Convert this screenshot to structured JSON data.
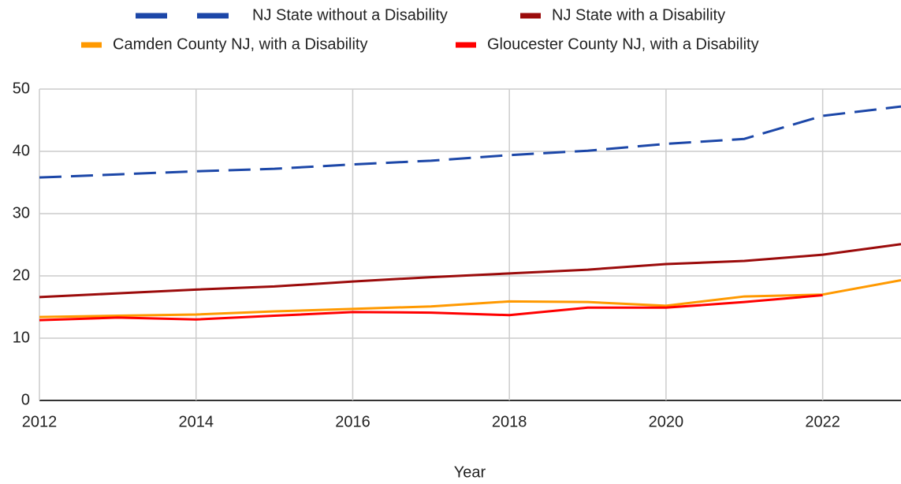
{
  "chart_data": {
    "type": "line",
    "x": [
      2012,
      2013,
      2014,
      2015,
      2016,
      2017,
      2018,
      2019,
      2020,
      2021,
      2022,
      2023
    ],
    "series": [
      {
        "name": "NJ State without a Disability",
        "color": "#1c47a8",
        "dashed": true,
        "values": [
          35.8,
          36.3,
          36.8,
          37.2,
          37.9,
          38.5,
          39.4,
          40.1,
          41.2,
          42.0,
          45.7,
          47.2
        ]
      },
      {
        "name": "NJ State with a Disability",
        "color": "#9b0b0b",
        "dashed": false,
        "values": [
          16.6,
          17.2,
          17.8,
          18.3,
          19.1,
          19.8,
          20.4,
          21.0,
          21.9,
          22.4,
          23.4,
          25.1
        ]
      },
      {
        "name": "Camden County NJ, with a Disability",
        "color": "#ff9900",
        "dashed": false,
        "values": [
          13.4,
          13.6,
          13.8,
          14.3,
          14.7,
          15.1,
          15.9,
          15.8,
          15.2,
          16.7,
          17.0,
          19.3
        ]
      },
      {
        "name": "Gloucester County NJ, with a Disability",
        "color": "#ff0000",
        "dashed": false,
        "values": [
          12.9,
          13.3,
          13.0,
          13.6,
          14.2,
          14.1,
          13.7,
          14.9,
          14.9,
          15.8,
          16.9,
          null
        ]
      }
    ],
    "xlabel": "Year",
    "xlim": [
      2012,
      2023
    ],
    "xticks": [
      2012,
      2014,
      2016,
      2018,
      2020,
      2022
    ],
    "ylim": [
      0,
      50
    ],
    "yticks": [
      0,
      10,
      20,
      30,
      40,
      50
    ],
    "grid": true,
    "legend": "top"
  }
}
